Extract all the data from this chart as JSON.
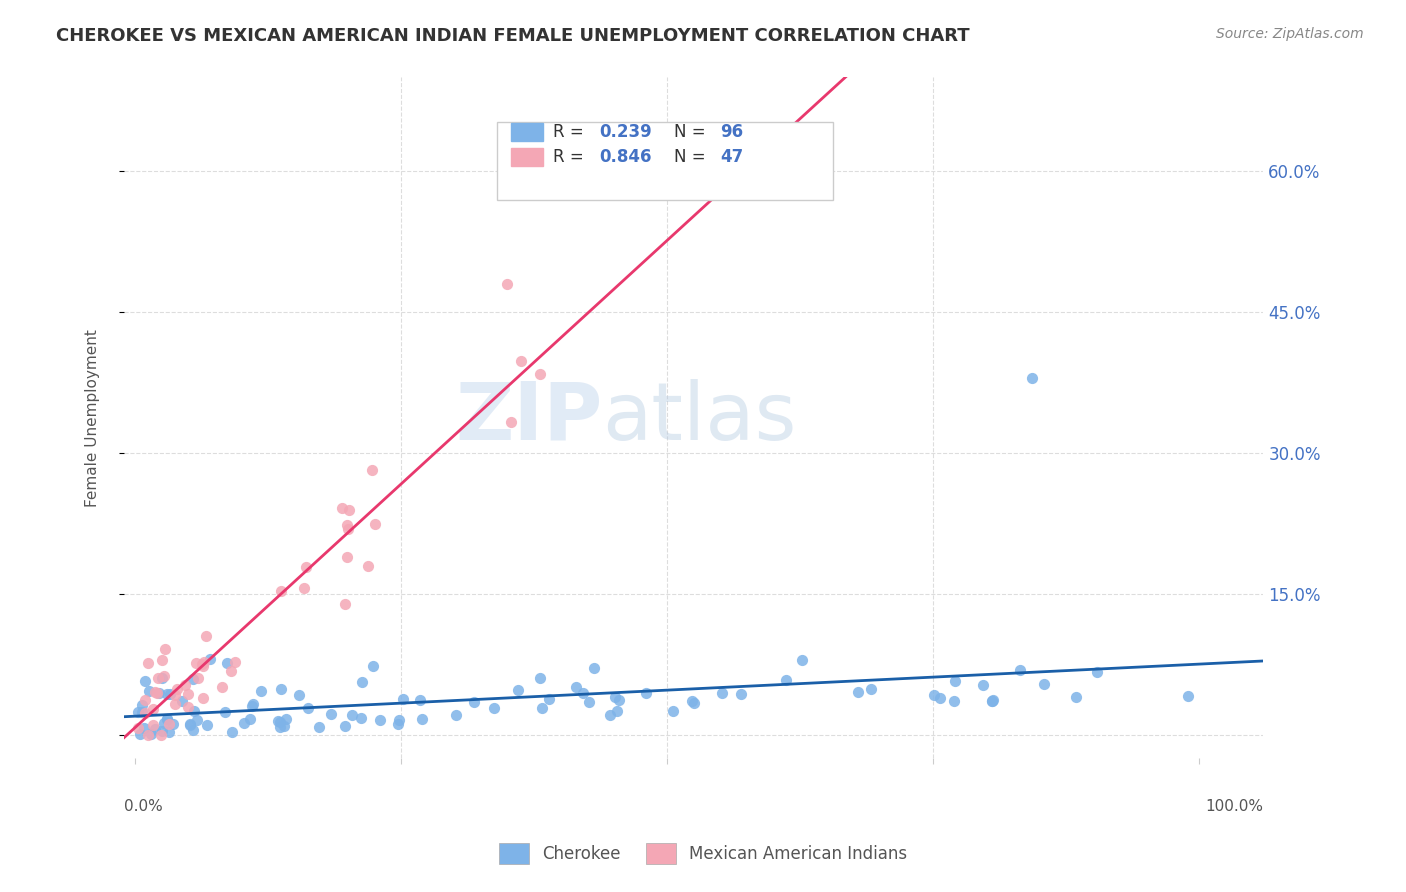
{
  "title": "CHEROKEE VS MEXICAN AMERICAN INDIAN FEMALE UNEMPLOYMENT CORRELATION CHART",
  "source": "Source: ZipAtlas.com",
  "ylabel": "Female Unemployment",
  "ytick_vals": [
    0,
    0.15,
    0.3,
    0.45,
    0.6
  ],
  "ytick_labels": [
    "",
    "15.0%",
    "30.0%",
    "45.0%",
    "60.0%"
  ],
  "cherokee_color": "#7EB3E8",
  "cherokee_line_color": "#1A5FA8",
  "mexican_color": "#F4A7B5",
  "mexican_line_color": "#E8386D",
  "label_color": "#4472C4",
  "background_color": "#FFFFFF",
  "watermark_zip": "ZIP",
  "watermark_atlas": "atlas",
  "cherokee_R": 0.239,
  "cherokee_N": 96,
  "mexican_R": 0.846,
  "mexican_N": 47
}
